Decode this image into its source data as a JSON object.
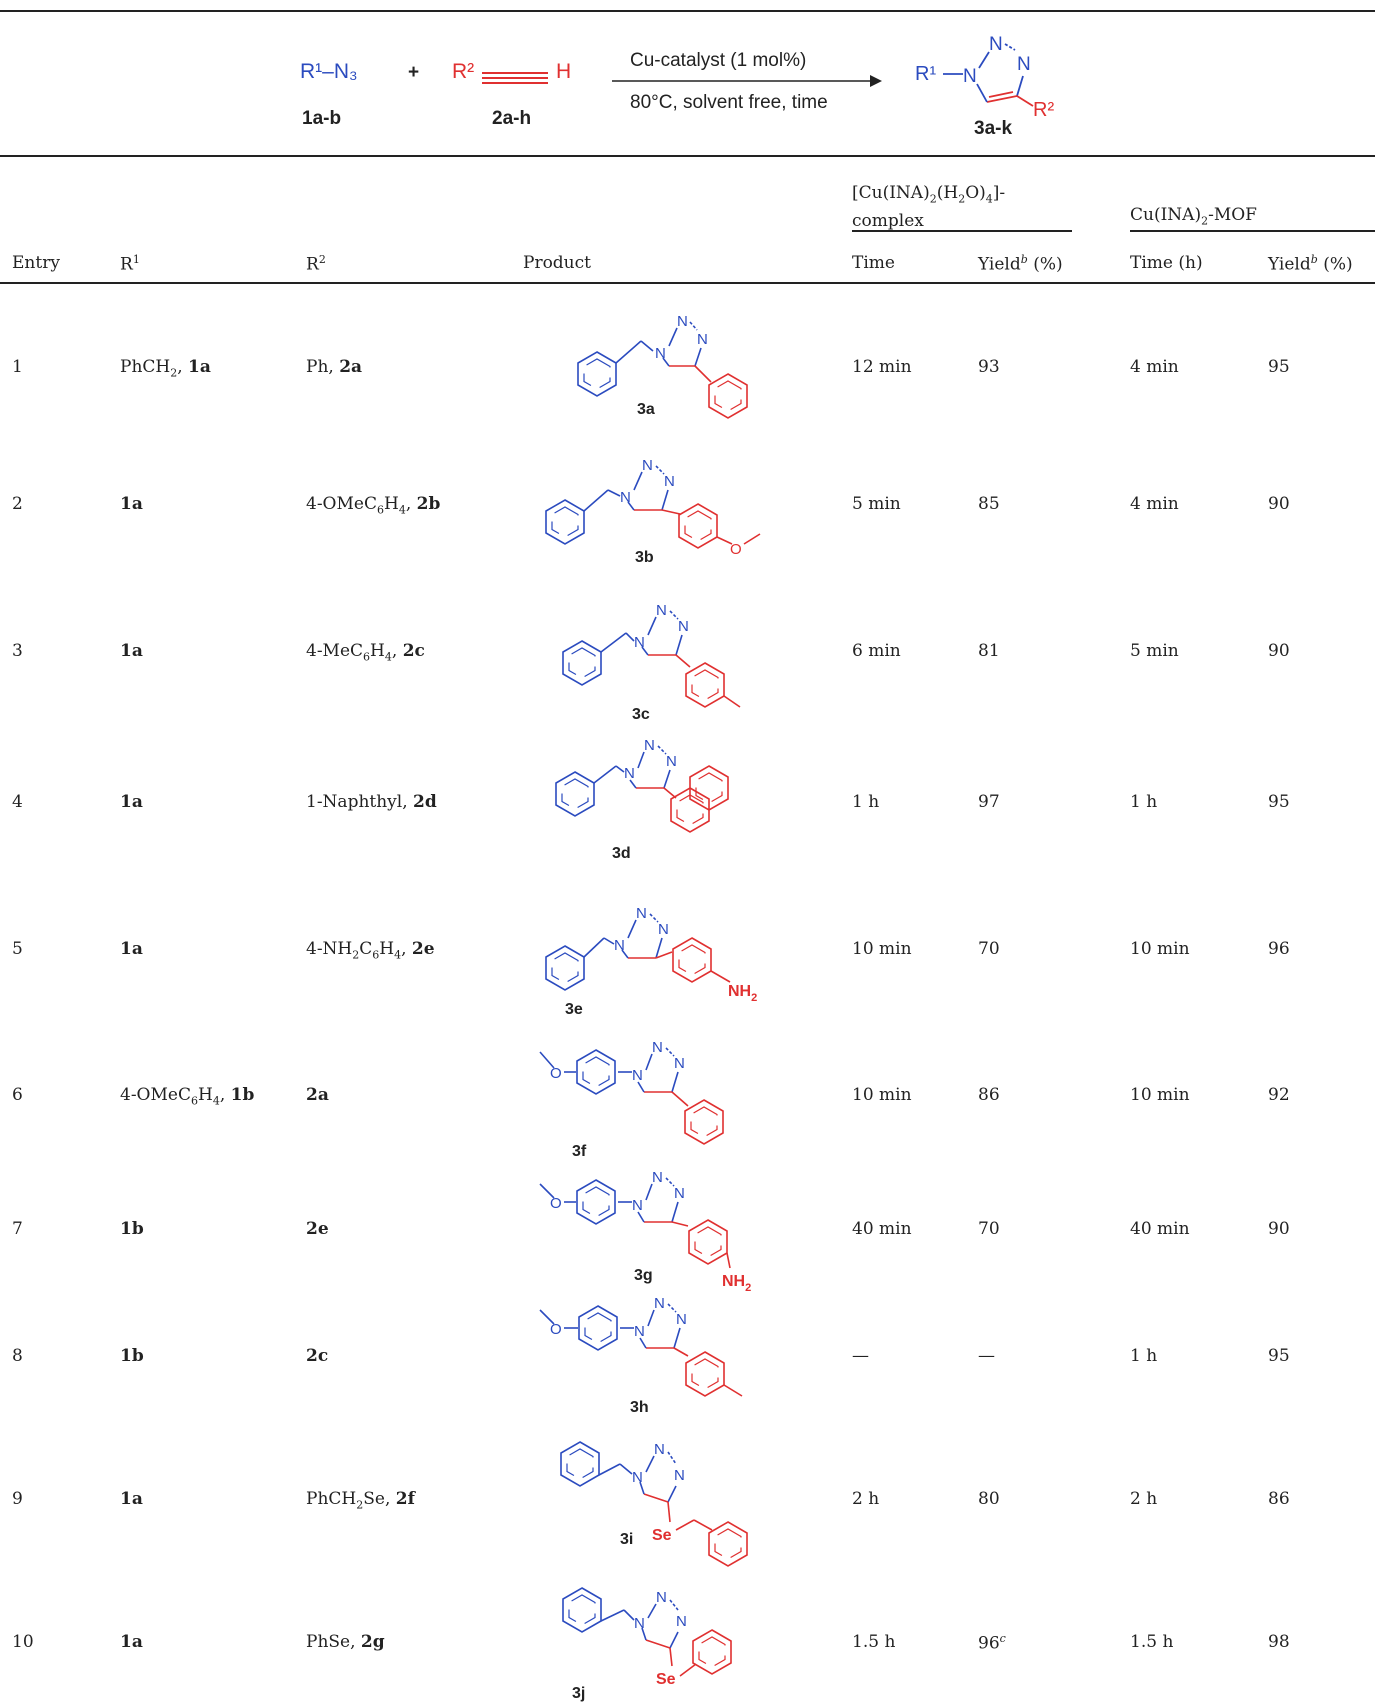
{
  "scheme": {
    "reactant1": "R¹–N₃",
    "reactant1_label": "1a-b",
    "plus": "+",
    "reactant2_r": "R²",
    "reactant2_h": "H",
    "reactant2_label": "2a-h",
    "arrow_top": "Cu-catalyst (1 mol%)",
    "arrow_bottom": "80°C, solvent free, time",
    "product_r1": "R¹",
    "product_r2": "R²",
    "product_n": "N",
    "product_label": "3a-k"
  },
  "header": {
    "entry": "Entry",
    "r1": "R",
    "r1_sup": "1",
    "r2": "R",
    "r2_sup": "2",
    "product": "Product",
    "group1_line1": "[Cu(INA)",
    "group1_line1b": "2",
    "group1_line1c": "(H",
    "group1_line1d": "2",
    "group1_line1e": "O)",
    "group1_line1f": "4",
    "group1_line1g": "]-",
    "group1_line2": "complex",
    "group2": "Cu(INA)",
    "group2_sub": "2",
    "group2_tail": "-MOF",
    "time1": "Time",
    "yield1": "Yield",
    "yield_sup": "b",
    "yield1_unit": " (%)",
    "time2": "Time (h)",
    "yield2": "Yield",
    "yield2_unit": " (%)"
  },
  "rows": [
    {
      "entry": "1",
      "r1": "PhCH",
      "r1_sub": "2",
      "r1_tail": ", ",
      "r1_bold": "1a",
      "r2": "Ph, ",
      "r2_bold": "2a",
      "product": "3a",
      "time1": "12 min",
      "yield1": "93",
      "time2": "4 min",
      "yield2": "95"
    },
    {
      "entry": "2",
      "r1_bold": "1a",
      "r2": "4-OMeC",
      "r2_sub1": "6",
      "r2_mid": "H",
      "r2_sub2": "4",
      "r2_tail": ", ",
      "r2_bold": "2b",
      "product": "3b",
      "time1": "5 min",
      "yield1": "85",
      "time2": "4 min",
      "yield2": "90"
    },
    {
      "entry": "3",
      "r1_bold": "1a",
      "r2": "4-MeC",
      "r2_sub1": "6",
      "r2_mid": "H",
      "r2_sub2": "4",
      "r2_tail": ", ",
      "r2_bold": "2c",
      "product": "3c",
      "time1": "6 min",
      "yield1": "81",
      "time2": "5 min",
      "yield2": "90"
    },
    {
      "entry": "4",
      "r1_bold": "1a",
      "r2": "1-Naphthyl, ",
      "r2_bold": "2d",
      "product": "3d",
      "time1": "1 h",
      "yield1": "97",
      "time2": "1 h",
      "yield2": "95"
    },
    {
      "entry": "5",
      "r1_bold": "1a",
      "r2": "4-NH",
      "r2_sub1": "2",
      "r2_mid": "C",
      "r2_sub2": "6",
      "r2_mid2": "H",
      "r2_sub3": "4",
      "r2_tail": ", ",
      "r2_bold": "2e",
      "product": "3e",
      "time1": "10 min",
      "yield1": "70",
      "time2": "10 min",
      "yield2": "96"
    },
    {
      "entry": "6",
      "r1": "4-OMeC",
      "r1_sub1": "6",
      "r1_mid": "H",
      "r1_sub2": "4",
      "r1_tail": ", ",
      "r1_bold": "1b",
      "r2_bold": "2a",
      "product": "3f",
      "time1": "10 min",
      "yield1": "86",
      "time2": "10 min",
      "yield2": "92"
    },
    {
      "entry": "7",
      "r1_bold": "1b",
      "r2_bold": "2e",
      "product": "3g",
      "time1": "40 min",
      "yield1": "70",
      "time2": "40 min",
      "yield2": "90"
    },
    {
      "entry": "8",
      "r1_bold": "1b",
      "r2_bold": "2c",
      "product": "3h",
      "time1": "—",
      "yield1": "—",
      "time2": "1 h",
      "yield2": "95"
    },
    {
      "entry": "9",
      "r1_bold": "1a",
      "r2": "PhCH",
      "r2_sub1": "2",
      "r2_tail": "Se, ",
      "r2_bold": "2f",
      "product": "3i",
      "time1": "2 h",
      "yield1": "80",
      "time2": "2 h",
      "yield2": "86"
    },
    {
      "entry": "10",
      "r1_bold": "1a",
      "r2": "PhSe, ",
      "r2_bold": "2g",
      "product": "3j",
      "time1": "1.5 h",
      "yield1": "96",
      "yield1_sup": "c",
      "time2": "1.5 h",
      "yield2": "98"
    }
  ],
  "struct_text": {
    "n": "N",
    "nh2": "NH",
    "nh2_sub": "2",
    "o": "O",
    "se": "Se"
  },
  "colors": {
    "blue": "#2b4bbf",
    "red": "#e03030",
    "rule": "#222222"
  }
}
